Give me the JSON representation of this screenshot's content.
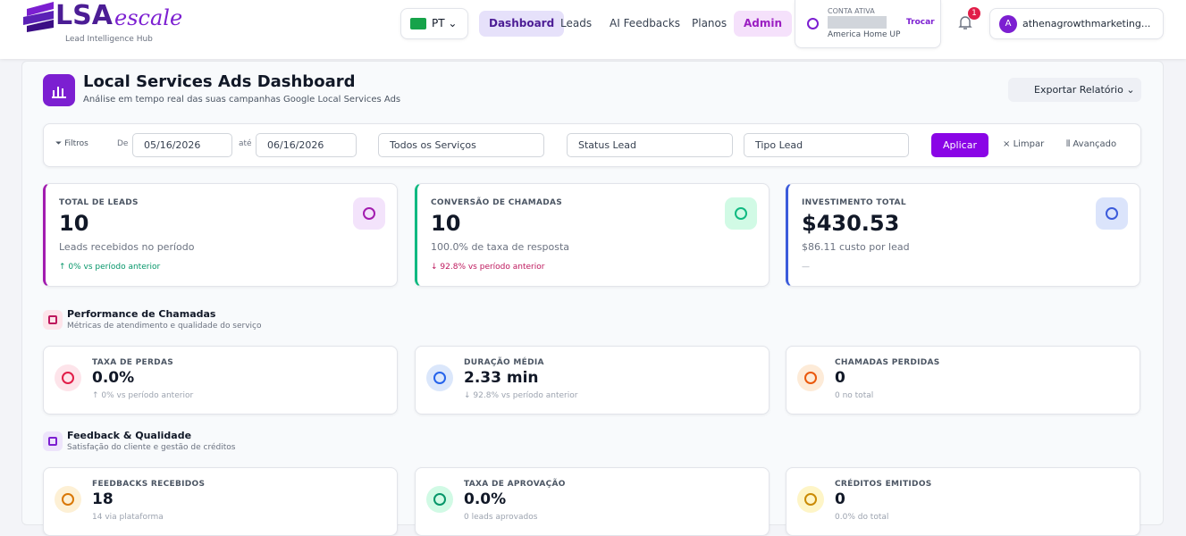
{
  "header": {
    "logo_main": "LSA",
    "logo_script": "escale",
    "tagline": "Lead Intelligence Hub",
    "language": "PT",
    "nav": [
      "Dashboard",
      "Leads",
      "AI Feedbacks",
      "Planos",
      "Admin"
    ],
    "account_label": "CONTA ATIVA",
    "account_name": "America Home UP",
    "switch": "Trocar",
    "notifications": "1",
    "user_initial": "A",
    "user_email": "athenagrowthmarketing..."
  },
  "page": {
    "title": "Local Services Ads Dashboard",
    "subtitle": "Análise em tempo real das suas campanhas Google Local Services Ads",
    "export": "Exportar Relatório"
  },
  "filters": {
    "label": "Filtros",
    "from_label": "De",
    "from": "05/16/2026",
    "to_label": "até",
    "to": "06/16/2026",
    "selects": [
      "Todos os Serviços",
      "Status Lead",
      "Tipo Lead"
    ],
    "apply": "Aplicar",
    "clear": "Limpar",
    "advanced": "Avançado"
  },
  "kpis": [
    {
      "label": "TOTAL DE LEADS",
      "value": "10",
      "note": "Leads recebidos no período",
      "change": "↑ 0% vs período anterior"
    },
    {
      "label": "CONVERSÃO DE CHAMADAS",
      "value": "10",
      "note": "100.0% de taxa de resposta",
      "change": "↓ 92.8% vs período anterior"
    },
    {
      "label": "INVESTIMENTO TOTAL",
      "value": "$430.53",
      "note": "$86.11 custo por lead",
      "change": "—"
    }
  ],
  "sections": [
    {
      "title": "Performance de Chamadas",
      "subtitle": "Métricas de atendimento e qualidade do serviço",
      "cards": [
        {
          "label": "TAXA DE PERDAS",
          "value": "0.0%",
          "note": "↑ 0% vs período anterior"
        },
        {
          "label": "DURAÇÃO MÉDIA",
          "value": "2.33 min",
          "note": "↓ 92.8% vs período anterior"
        },
        {
          "label": "CHAMADAS PERDIDAS",
          "value": "0",
          "note": "0 no total"
        }
      ]
    },
    {
      "title": "Feedback & Qualidade",
      "subtitle": "Satisfação do cliente e gestão de créditos",
      "cards": [
        {
          "label": "FEEDBACKS RECEBIDOS",
          "value": "18",
          "note": "14 via plataforma"
        },
        {
          "label": "TAXA DE APROVAÇÃO",
          "value": "0.0%",
          "note": "0 leads aprovados"
        },
        {
          "label": "CRÉDITOS EMITIDOS",
          "value": "0",
          "note": "0.0% do total"
        }
      ]
    }
  ]
}
